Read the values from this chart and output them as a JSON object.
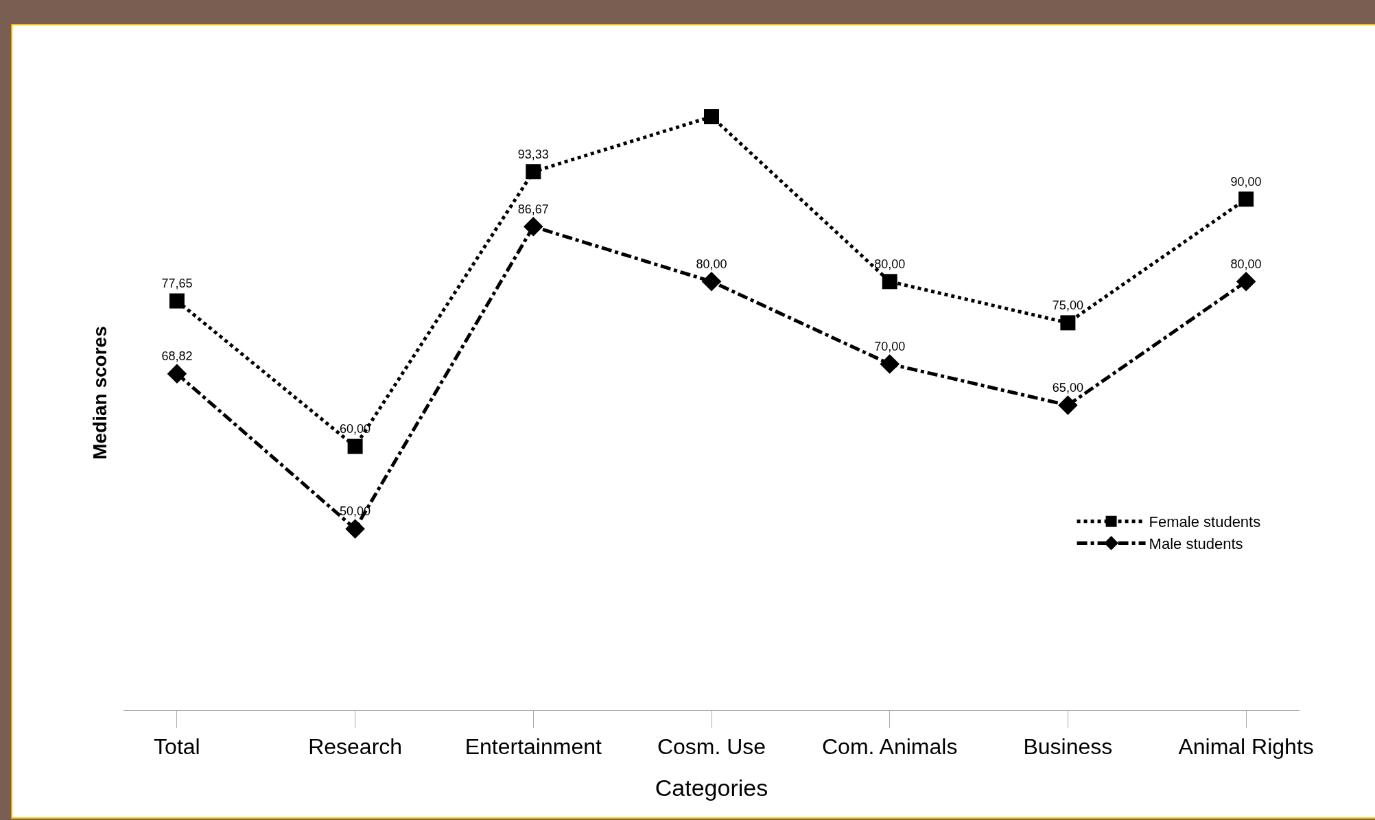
{
  "chart_data": {
    "type": "line",
    "xlabel": "Categories",
    "ylabel": "Median scores",
    "categories": [
      "Total",
      "Research",
      "Entertainment",
      "Cosm. Use",
      "Com. Animals",
      "Business",
      "Animal Rights"
    ],
    "series": [
      {
        "name": "Female students",
        "color": "#000000",
        "marker": "square",
        "line_style": "dotted",
        "values": [
          77.65,
          60.0,
          93.33,
          100,
          80.0,
          75.0,
          90.0
        ],
        "value_labels": [
          "77,65",
          "60,00",
          "93,33",
          null,
          "80,00",
          "75,00",
          "90,00"
        ]
      },
      {
        "name": "Male students",
        "color": "#000000",
        "marker": "diamond",
        "line_style": "dashdot",
        "values": [
          68.82,
          50.0,
          86.67,
          80.0,
          70.0,
          65.0,
          80.0
        ],
        "value_labels": [
          "68,82",
          "50,00",
          "86,67",
          "80,00",
          "70,00",
          "65,00",
          "80,00"
        ]
      }
    ],
    "legend": "bottom right"
  }
}
